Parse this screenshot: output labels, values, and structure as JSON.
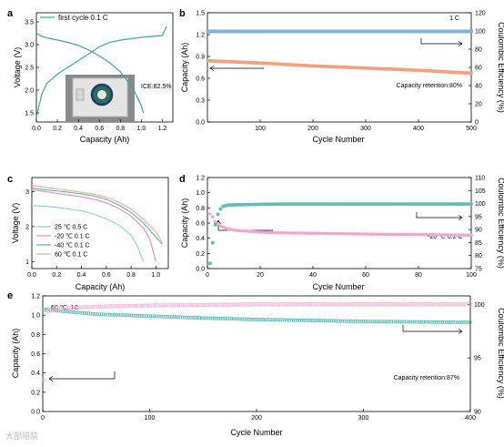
{
  "chart_data": [
    {
      "panel": "a",
      "type": "line",
      "xlabel": "Capacity (Ah)",
      "ylabel": "Voltage (V)",
      "xlim": [
        0,
        1.3
      ],
      "ylim": [
        1.3,
        3.7
      ],
      "xticks": [
        "0.0",
        "0.2",
        "0.4",
        "0.6",
        "0.8",
        "1.0",
        "1.2"
      ],
      "yticks": [
        "1.5",
        "2.0",
        "2.5",
        "3.0",
        "3.5"
      ],
      "legend": "first cycle  0.1 C",
      "annotation": "ICE:82.5%",
      "color": "#3aa7a0",
      "charge": {
        "x": [
          0,
          0.02,
          0.05,
          0.1,
          0.2,
          0.3,
          0.4,
          0.5,
          0.6,
          0.7,
          0.8,
          0.9,
          1.0,
          1.1,
          1.2,
          1.22,
          1.24
        ],
        "y": [
          1.4,
          1.6,
          1.9,
          2.15,
          2.35,
          2.5,
          2.65,
          2.8,
          2.95,
          3.05,
          3.1,
          3.13,
          3.16,
          3.18,
          3.2,
          3.3,
          3.4
        ]
      },
      "discharge": {
        "x": [
          0,
          0.05,
          0.1,
          0.2,
          0.3,
          0.4,
          0.5,
          0.6,
          0.7,
          0.8,
          0.9,
          0.95,
          1.0,
          1.02
        ],
        "y": [
          3.25,
          3.18,
          3.15,
          3.1,
          3.05,
          2.98,
          2.88,
          2.75,
          2.6,
          2.4,
          2.1,
          1.9,
          1.65,
          1.5
        ]
      }
    },
    {
      "panel": "b",
      "type": "scatter",
      "xlabel": "Cycle Number",
      "ylabel": "Capacity (Ah)",
      "y2label": "Coulombic Efficiency (%)",
      "xlim": [
        0,
        500
      ],
      "ylim": [
        0,
        1.5
      ],
      "y2lim": [
        0,
        120
      ],
      "xticks": [
        "100",
        "200",
        "300",
        "400",
        "500"
      ],
      "yticks": [
        "0.0",
        "0.3",
        "0.6",
        "0.9",
        "1.2",
        "1.5"
      ],
      "y2ticks": [
        "0",
        "20",
        "40",
        "60",
        "80",
        "100",
        "120"
      ],
      "rate": "1 C",
      "annotation": "Capacity retention:80%",
      "series": [
        {
          "axis": "left",
          "color": "#f4a07d",
          "x": [
            1,
            100,
            200,
            300,
            400,
            500
          ],
          "y": [
            0.84,
            0.81,
            0.77,
            0.74,
            0.71,
            0.67
          ]
        },
        {
          "axis": "right",
          "color": "#7fb0ee",
          "x": [
            1,
            100,
            200,
            300,
            400,
            500
          ],
          "y": [
            99.5,
            99.6,
            99.6,
            99.6,
            99.6,
            99.6
          ]
        }
      ]
    },
    {
      "panel": "c",
      "type": "line",
      "xlabel": "Capacity (Ah)",
      "ylabel": "Voltage (V)",
      "xlim": [
        0,
        1.1
      ],
      "ylim": [
        0.8,
        3.4
      ],
      "xticks": [
        "0.0",
        "0.2",
        "0.4",
        "0.6",
        "0.8",
        "1.0"
      ],
      "yticks": [
        "1",
        "2",
        "3"
      ],
      "series": [
        {
          "name": "25 ℃  0.5 C",
          "color": "#8ad0e0",
          "x": [
            0,
            0.1,
            0.2,
            0.3,
            0.4,
            0.5,
            0.6,
            0.7,
            0.8,
            0.85,
            0.9
          ],
          "y": [
            2.6,
            2.58,
            2.55,
            2.5,
            2.45,
            2.35,
            2.22,
            2.05,
            1.75,
            1.45,
            1.0
          ]
        },
        {
          "name": "-20 ℃  0.1 C",
          "color": "#e88ab8",
          "x": [
            0,
            0.1,
            0.2,
            0.3,
            0.4,
            0.5,
            0.6,
            0.7,
            0.8,
            0.9,
            0.95,
            1.0
          ],
          "y": [
            3.05,
            3.0,
            2.95,
            2.9,
            2.85,
            2.78,
            2.68,
            2.52,
            2.3,
            1.95,
            1.65,
            1.0
          ]
        },
        {
          "name": "-40 ℃  0.1 C",
          "color": "#4fb8b0",
          "x": [
            0,
            0.1,
            0.2,
            0.3,
            0.4,
            0.5,
            0.6,
            0.7,
            0.8,
            0.9,
            1.0,
            1.05
          ],
          "y": [
            3.1,
            3.05,
            3.02,
            2.98,
            2.93,
            2.87,
            2.78,
            2.62,
            2.4,
            2.1,
            1.7,
            1.5
          ]
        },
        {
          "name": "60 ℃  0.1 C",
          "color": "#f2a88a",
          "x": [
            0,
            0.1,
            0.2,
            0.3,
            0.4,
            0.5,
            0.6,
            0.7,
            0.8,
            0.9,
            1.0,
            1.05
          ],
          "y": [
            3.18,
            3.12,
            3.08,
            3.03,
            2.98,
            2.92,
            2.84,
            2.7,
            2.5,
            2.2,
            1.85,
            1.55
          ]
        }
      ]
    },
    {
      "panel": "d",
      "type": "scatter",
      "xlabel": "Cycle Number",
      "ylabel": "Capacity (Ah)",
      "y2label": "Coulombic Efficiency (%)",
      "xlim": [
        0,
        100
      ],
      "ylim": [
        0,
        1.2
      ],
      "y2lim": [
        75,
        110
      ],
      "xticks": [
        "0",
        "20",
        "40",
        "60",
        "80",
        "100"
      ],
      "yticks": [
        "0.0",
        "0.2",
        "0.4",
        "0.6",
        "0.8",
        "1.0",
        "1.2"
      ],
      "y2ticks": [
        "75",
        "80",
        "85",
        "90",
        "95",
        "100",
        "105",
        "110"
      ],
      "annotation": "-20 ℃ 0.2 C",
      "series": [
        {
          "axis": "left",
          "color": "#f2a6cf",
          "x": [
            1,
            2,
            3,
            5,
            8,
            12,
            20,
            30,
            40,
            50,
            60,
            70,
            80,
            90,
            100
          ],
          "y": [
            0.72,
            0.68,
            0.62,
            0.56,
            0.52,
            0.5,
            0.48,
            0.47,
            0.465,
            0.46,
            0.455,
            0.45,
            0.45,
            0.445,
            0.44
          ]
        },
        {
          "axis": "right",
          "color": "#5bc0b3",
          "x": [
            1,
            2,
            3,
            4,
            5,
            6,
            8,
            10,
            15,
            20,
            30,
            40,
            50,
            60,
            70,
            80,
            90,
            100
          ],
          "y": [
            77,
            85,
            92,
            96,
            98,
            99,
            99.4,
            99.5,
            99.6,
            99.7,
            99.8,
            99.8,
            99.8,
            99.8,
            99.8,
            99.8,
            99.8,
            99.8
          ]
        }
      ]
    },
    {
      "panel": "e",
      "type": "scatter",
      "xlabel": "Cycle Number",
      "ylabel": "Capacity (Ah)",
      "y2label": "Coulombic Efficiency (%)",
      "xlim": [
        0,
        400
      ],
      "ylim": [
        0,
        1.2
      ],
      "y2lim": [
        90,
        100.8
      ],
      "xticks": [
        "0",
        "100",
        "200",
        "300",
        "400"
      ],
      "yticks": [
        "0.0",
        "0.2",
        "0.4",
        "0.6",
        "0.8",
        "1.0",
        "1.2"
      ],
      "y2ticks": [
        "90",
        "95",
        "100"
      ],
      "rate": "60 ℃, 1C",
      "annotation": "Capacity retention:87%",
      "series": [
        {
          "axis": "left",
          "color": "#3cb0a5",
          "x": [
            1,
            20,
            50,
            100,
            150,
            200,
            250,
            300,
            350,
            400
          ],
          "y": [
            1.06,
            1.04,
            1.01,
            0.99,
            0.97,
            0.955,
            0.945,
            0.935,
            0.93,
            0.925
          ]
        },
        {
          "axis": "right",
          "color": "#f2a6cf",
          "x": [
            1,
            3,
            10,
            50,
            100,
            150,
            200,
            250,
            300,
            350,
            400
          ],
          "y": [
            93,
            99.3,
            99.6,
            99.8,
            99.9,
            99.95,
            100,
            100,
            100,
            100,
            100
          ]
        }
      ]
    }
  ],
  "panel_labels": [
    "a",
    "b",
    "c",
    "d",
    "e"
  ],
  "watermark": "大部陪院"
}
